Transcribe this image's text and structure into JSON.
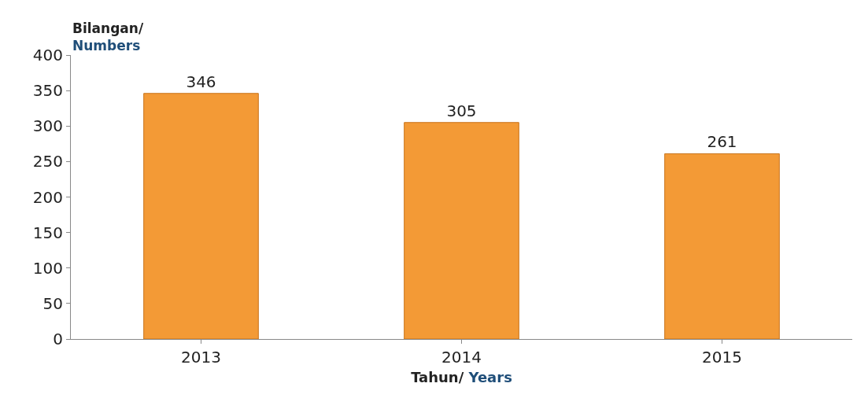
{
  "chart_data": {
    "type": "bar",
    "categories": [
      "2013",
      "2014",
      "2015"
    ],
    "values": [
      346,
      305,
      261
    ],
    "color": "#f39a36",
    "ylim": [
      0,
      400
    ],
    "yticks": [
      0,
      50,
      100,
      150,
      200,
      250,
      300,
      350,
      400
    ],
    "data_labels": true,
    "legend": false,
    "xlabel": "Tahun/ Years",
    "ylabel": "Bilangan/ Numbers"
  }
}
